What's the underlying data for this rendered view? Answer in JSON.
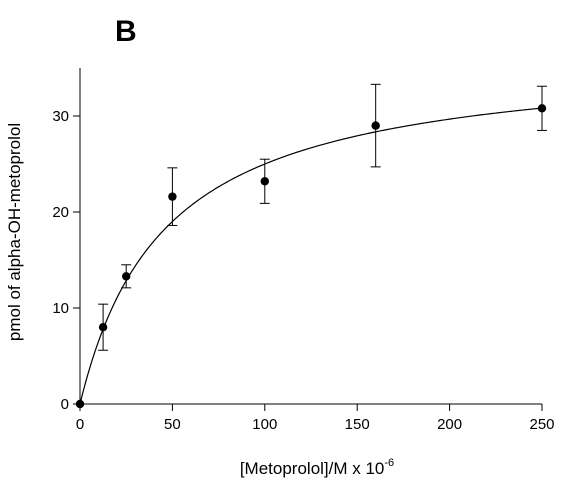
{
  "chart_data": {
    "type": "scatter",
    "panel_label": "B",
    "xlabel": "[Metoprolol]/M x 10",
    "xlabel_superscript": "-6",
    "ylabel": "pmol of alpha-OH-metoprolol",
    "xlim": [
      0,
      250
    ],
    "ylim": [
      0,
      35
    ],
    "xticks": [
      0,
      50,
      100,
      150,
      200,
      250
    ],
    "yticks": [
      0,
      10,
      20,
      30
    ],
    "grid": false,
    "series": [
      {
        "points": [
          {
            "x": 0,
            "y": 0,
            "err": 0
          },
          {
            "x": 12.5,
            "y": 8.0,
            "err": 2.4
          },
          {
            "x": 25,
            "y": 13.3,
            "err": 1.2
          },
          {
            "x": 50,
            "y": 21.6,
            "err": 3.0
          },
          {
            "x": 100,
            "y": 23.2,
            "err": 2.3
          },
          {
            "x": 160,
            "y": 29.0,
            "err": 4.3
          },
          {
            "x": 250,
            "y": 30.8,
            "err": 2.3
          }
        ]
      }
    ],
    "fit_curve": {
      "type": "michaelis-menten",
      "vmax": 36.5,
      "km": 46.0
    },
    "colors": {
      "points": "#000000",
      "line": "#000000"
    }
  }
}
